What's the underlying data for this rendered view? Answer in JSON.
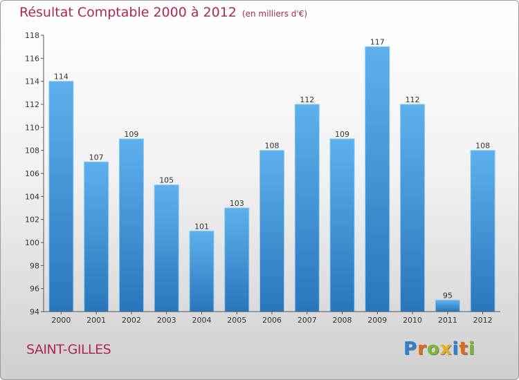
{
  "header": {
    "title": "Résultat Comptable 2000 à 2012",
    "unit": "(en milliers d'€)"
  },
  "footer": {
    "commune": "SAINT-GILLES",
    "logo": "Proxiti",
    "logo_letters": [
      {
        "ch": "P",
        "color": "#2d7fcf"
      },
      {
        "ch": "r",
        "color": "#e06a1b"
      },
      {
        "ch": "o",
        "color": "#7cb82f"
      },
      {
        "ch": "x",
        "color": "#e0b21b"
      },
      {
        "ch": "i",
        "color": "#2d7fcf"
      },
      {
        "ch": "t",
        "color": "#e06a1b"
      },
      {
        "ch": "i",
        "color": "#7cb82f"
      }
    ]
  },
  "colors": {
    "bar_top": "#5eb0ec",
    "bar_bottom": "#2a76bc",
    "title": "#b0284d"
  },
  "chart_data": {
    "type": "bar",
    "title": "Résultat Comptable 2000 à 2012",
    "categories": [
      "2000",
      "2001",
      "2002",
      "2003",
      "2004",
      "2005",
      "2006",
      "2007",
      "2008",
      "2009",
      "2010",
      "2011",
      "2012"
    ],
    "values": [
      114,
      107,
      109,
      105,
      101,
      103,
      108,
      112,
      109,
      117,
      112,
      95,
      108
    ],
    "ylim": [
      94,
      118
    ],
    "yticks": [
      94,
      96,
      98,
      100,
      102,
      104,
      106,
      108,
      110,
      112,
      114,
      116,
      118
    ],
    "grid": false,
    "legend": "none"
  }
}
